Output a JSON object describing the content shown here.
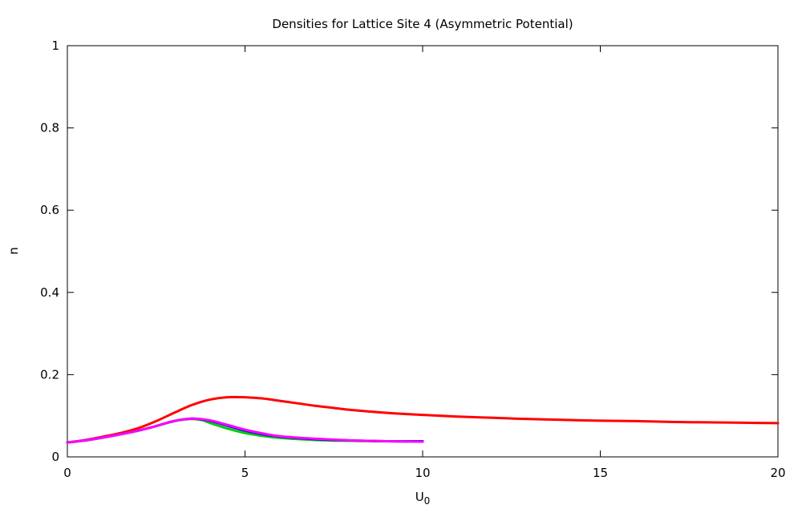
{
  "chart_data": {
    "type": "line",
    "title": "Densities for Lattice Site 4 (Asymmetric Potential)",
    "xlabel": "U",
    "xlabel_subscript": "0",
    "ylabel": "n",
    "xlim": [
      0,
      20
    ],
    "ylim": [
      0,
      1
    ],
    "x_ticks": [
      "0",
      "5",
      "10",
      "15",
      "20"
    ],
    "y_ticks": [
      "0",
      "0.2",
      "0.4",
      "0.6",
      "0.8",
      "1"
    ],
    "grid": false,
    "legend": "none",
    "series": [
      {
        "color": "#ff0000",
        "x": [
          0,
          0.5,
          1,
          1.5,
          2,
          2.5,
          3,
          3.5,
          4,
          4.5,
          5,
          5.5,
          6,
          6.5,
          7,
          7.5,
          8,
          9,
          10,
          11,
          12,
          13,
          14,
          15,
          16,
          17,
          18,
          19,
          20
        ],
        "y": [
          0.035,
          0.041,
          0.049,
          0.058,
          0.07,
          0.087,
          0.107,
          0.126,
          0.139,
          0.145,
          0.145,
          0.142,
          0.136,
          0.13,
          0.124,
          0.119,
          0.114,
          0.107,
          0.102,
          0.098,
          0.095,
          0.092,
          0.09,
          0.088,
          0.087,
          0.085,
          0.084,
          0.083,
          0.082
        ]
      },
      {
        "color": "#00cc00",
        "x": [
          0,
          0.5,
          1,
          1.5,
          2,
          2.5,
          3,
          3.5,
          3.8,
          4,
          4.5,
          5,
          5.5,
          6,
          7,
          8,
          9,
          10
        ],
        "y": [
          0.035,
          0.04,
          0.047,
          0.055,
          0.064,
          0.075,
          0.087,
          0.092,
          0.089,
          0.083,
          0.069,
          0.058,
          0.051,
          0.046,
          0.041,
          0.039,
          0.038,
          0.038
        ]
      },
      {
        "color": "#0000ff",
        "x": [
          0,
          0.5,
          1,
          1.5,
          2,
          2.5,
          3,
          3.5,
          4,
          4.5,
          5,
          5.5,
          6,
          7,
          8,
          9,
          10
        ],
        "y": [
          0.035,
          0.04,
          0.047,
          0.055,
          0.064,
          0.075,
          0.087,
          0.093,
          0.088,
          0.076,
          0.064,
          0.055,
          0.049,
          0.043,
          0.04,
          0.038,
          0.038
        ]
      },
      {
        "color": "#ff00ff",
        "x": [
          0,
          0.5,
          1,
          1.5,
          2,
          2.5,
          3,
          3.5,
          4,
          4.5,
          5,
          5.5,
          6,
          7,
          8,
          9,
          10
        ],
        "y": [
          0.035,
          0.04,
          0.047,
          0.055,
          0.064,
          0.075,
          0.087,
          0.093,
          0.089,
          0.078,
          0.066,
          0.057,
          0.05,
          0.044,
          0.04,
          0.038,
          0.037
        ]
      }
    ]
  }
}
